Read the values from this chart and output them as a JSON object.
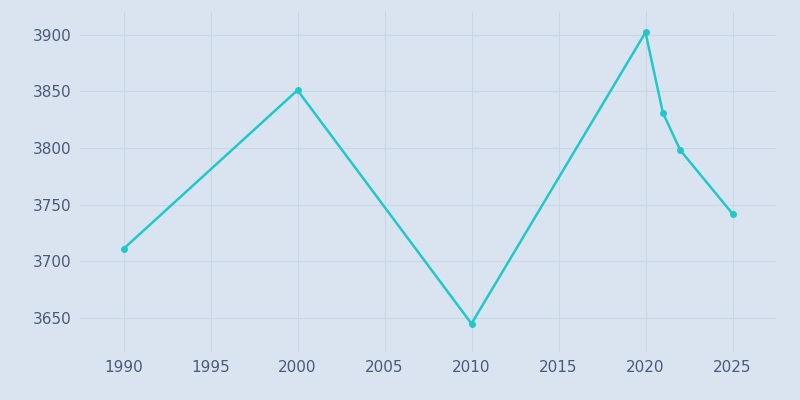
{
  "years": [
    1990,
    2000,
    2010,
    2020,
    2021,
    2022,
    2025
  ],
  "population": [
    3711,
    3851,
    3645,
    3902,
    3831,
    3798,
    3742
  ],
  "line_color": "#22c8c8",
  "marker_color": "#22c8c8",
  "bg_color": "#dae4f0",
  "plot_bg_color": "#dae4f0",
  "xlabel": "",
  "ylabel": "",
  "xlim": [
    1987.5,
    2027.5
  ],
  "ylim": [
    3620,
    3920
  ],
  "yticks": [
    3650,
    3700,
    3750,
    3800,
    3850,
    3900
  ],
  "xticks": [
    1990,
    1995,
    2000,
    2005,
    2010,
    2015,
    2020,
    2025
  ],
  "tick_label_color": "#4a5a7a",
  "grid_color": "#c8d8e8",
  "line_width": 1.8,
  "marker_size": 4
}
